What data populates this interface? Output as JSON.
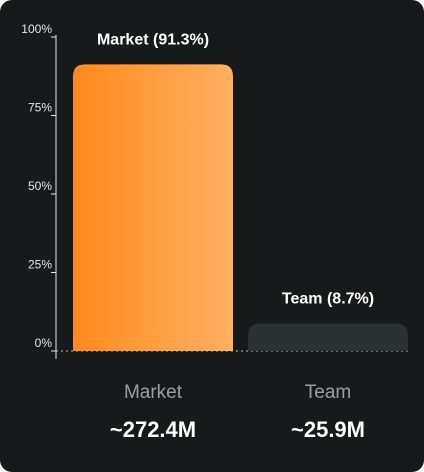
{
  "chart_data": {
    "type": "bar",
    "categories": [
      "Market",
      "Team"
    ],
    "values": [
      91.3,
      8.7
    ],
    "bar_labels": [
      "Market (91.3%)",
      "Team (8.7%)"
    ],
    "amounts": [
      "~272.4M",
      "~25.9M"
    ],
    "ylim": [
      0,
      100
    ],
    "yticks": [
      0,
      25,
      50,
      75,
      100
    ],
    "ytick_labels": [
      "0%",
      "25%",
      "50%",
      "75%",
      "100%"
    ],
    "grid": false,
    "colors": {
      "background": "#161a1b",
      "market_bar_start": "#ff8a1c",
      "market_bar_end": "#ffb062",
      "team_bar": "#2c3233",
      "axis": "#e6e6e6"
    }
  }
}
